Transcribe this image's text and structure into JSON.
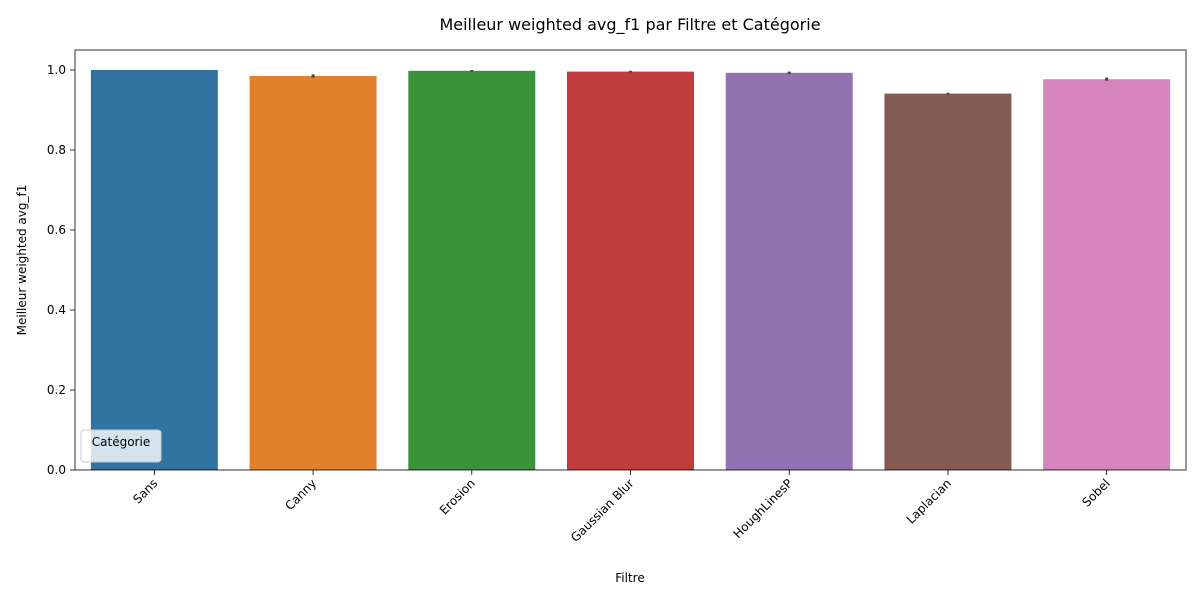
{
  "chart_data": {
    "type": "bar",
    "title": "Meilleur weighted avg_f1 par Filtre et Catégorie",
    "xlabel": "Filtre",
    "ylabel": "Meilleur weighted avg_f1",
    "categories": [
      "Sans",
      "Canny",
      "Erosion",
      "Gaussian Blur",
      "HoughLinesP",
      "Laplacian",
      "Sobel"
    ],
    "values": [
      1.0,
      0.985,
      0.998,
      0.996,
      0.993,
      0.941,
      0.977
    ],
    "errors": [
      0.0,
      0.004,
      0.002,
      0.002,
      0.003,
      0.002,
      0.004
    ],
    "colors": [
      "#3274a1",
      "#e1812c",
      "#3a923a",
      "#c03d3e",
      "#9372b2",
      "#845b53",
      "#d684bd"
    ],
    "ylim": [
      0,
      1.05
    ],
    "yticks": [
      0.0,
      0.2,
      0.4,
      0.6,
      0.8,
      1.0
    ],
    "ytick_labels": [
      "0.0",
      "0.2",
      "0.4",
      "0.6",
      "0.8",
      "1.0"
    ],
    "grid": false,
    "legend": {
      "title": "Catégorie",
      "placement": "lower-left",
      "entries": []
    }
  }
}
